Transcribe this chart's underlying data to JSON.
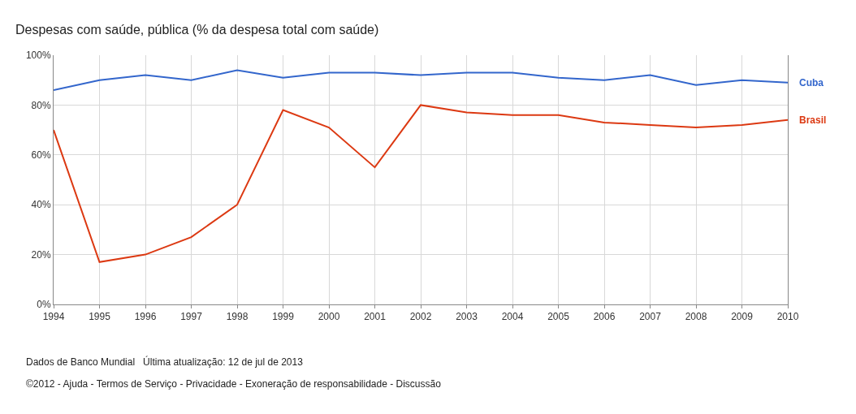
{
  "chart_data": {
    "type": "line",
    "title": "Despesas com saúde, pública (% da despesa total com saúde)",
    "x": [
      1994,
      1995,
      1996,
      1997,
      1998,
      1999,
      2000,
      2001,
      2002,
      2003,
      2004,
      2005,
      2006,
      2007,
      2008,
      2009,
      2010
    ],
    "series": [
      {
        "name": "Cuba",
        "color": "#3366cc",
        "values": [
          86,
          90,
          92,
          90,
          94,
          91,
          93,
          93,
          92,
          93,
          93,
          91,
          90,
          92,
          88,
          90,
          89
        ]
      },
      {
        "name": "Brasil",
        "color": "#dc3912",
        "values": [
          70,
          17,
          20,
          27,
          40,
          78,
          71,
          55,
          80,
          77,
          76,
          76,
          73,
          72,
          71,
          72,
          74
        ]
      }
    ],
    "xlim": [
      1994,
      2010
    ],
    "xticks": [
      1994,
      1995,
      1996,
      1997,
      1998,
      1999,
      2000,
      2001,
      2002,
      2003,
      2004,
      2005,
      2006,
      2007,
      2008,
      2009,
      2010
    ],
    "ylim": [
      0,
      100
    ],
    "yticks": [
      {
        "value": 0,
        "label": "0%"
      },
      {
        "value": 20,
        "label": "20%"
      },
      {
        "value": 40,
        "label": "40%"
      },
      {
        "value": 60,
        "label": "60%"
      },
      {
        "value": 80,
        "label": "80%"
      },
      {
        "value": 100,
        "label": "100%"
      }
    ],
    "grid": true,
    "legend": false,
    "marker": "none",
    "line_style": "solid",
    "annotations": [
      "Dados de Banco Mundial   Última atualização: 12 de jul de 2013",
      "©2012 - Ajuda - Termos de Serviço - Privacidade - Exoneração de responsabilidade - Discussão"
    ]
  }
}
